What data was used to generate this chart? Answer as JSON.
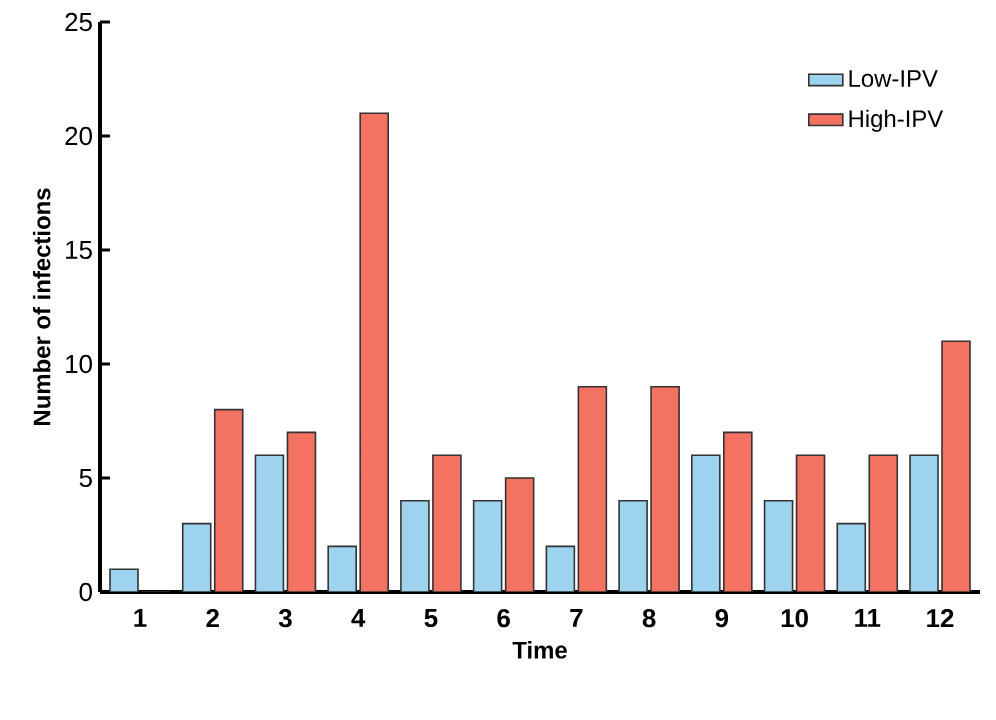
{
  "chart_data": {
    "type": "bar",
    "xlabel": "Time",
    "ylabel": "Number of infections",
    "categories": [
      "1",
      "2",
      "3",
      "4",
      "5",
      "6",
      "7",
      "8",
      "9",
      "10",
      "11",
      "12"
    ],
    "series": [
      {
        "name": "Low-IPV",
        "color": "#9ed3f0",
        "values": [
          1,
          3,
          6,
          2,
          4,
          4,
          2,
          4,
          6,
          4,
          3,
          6
        ]
      },
      {
        "name": "High-IPV",
        "color": "#f47262",
        "values": [
          0,
          8,
          7,
          21,
          6,
          5,
          9,
          9,
          7,
          6,
          6,
          11
        ]
      }
    ],
    "ylim": [
      0,
      25
    ],
    "yticks": [
      0,
      5,
      10,
      15,
      20,
      25
    ],
    "legend": "top right"
  }
}
